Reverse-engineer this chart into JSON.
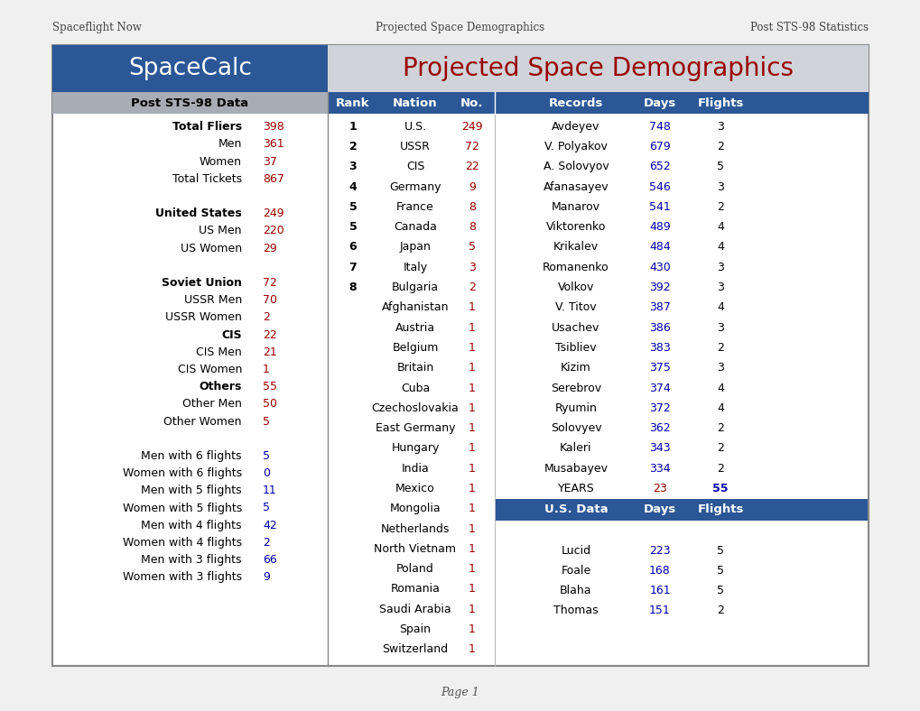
{
  "header_text": "Spaceflight Now",
  "center_header": "Projected Space Demographics",
  "right_header": "Post STS-98 Statistics",
  "spacecalc_title": "SpaceCalc",
  "main_title": "Projected Space Demographics",
  "subtitle": "Post STS-98 Data",
  "page_label": "Page 1",
  "left_col_rows": [
    {
      "label": "Total Fliers",
      "value": "398",
      "bold": true,
      "vcolor": "red"
    },
    {
      "label": "Men",
      "value": "361",
      "bold": false,
      "vcolor": "red"
    },
    {
      "label": "Women",
      "value": "37",
      "bold": false,
      "vcolor": "red"
    },
    {
      "label": "Total Tickets",
      "value": "867",
      "bold": false,
      "vcolor": "red"
    },
    {
      "label": "",
      "value": "",
      "bold": false,
      "vcolor": "red"
    },
    {
      "label": "United States",
      "value": "249",
      "bold": true,
      "vcolor": "red"
    },
    {
      "label": "US Men",
      "value": "220",
      "bold": false,
      "vcolor": "red"
    },
    {
      "label": "US Women",
      "value": "29",
      "bold": false,
      "vcolor": "red"
    },
    {
      "label": "",
      "value": "",
      "bold": false,
      "vcolor": "red"
    },
    {
      "label": "Soviet Union",
      "value": "72",
      "bold": true,
      "vcolor": "red"
    },
    {
      "label": "USSR Men",
      "value": "70",
      "bold": false,
      "vcolor": "red"
    },
    {
      "label": "USSR Women",
      "value": "2",
      "bold": false,
      "vcolor": "red"
    },
    {
      "label": "CIS",
      "value": "22",
      "bold": true,
      "vcolor": "red"
    },
    {
      "label": "CIS Men",
      "value": "21",
      "bold": false,
      "vcolor": "red"
    },
    {
      "label": "CIS Women",
      "value": "1",
      "bold": false,
      "vcolor": "red"
    },
    {
      "label": "Others",
      "value": "55",
      "bold": true,
      "vcolor": "red"
    },
    {
      "label": "Other Men",
      "value": "50",
      "bold": false,
      "vcolor": "red"
    },
    {
      "label": "Other Women",
      "value": "5",
      "bold": false,
      "vcolor": "red"
    },
    {
      "label": "",
      "value": "",
      "bold": false,
      "vcolor": "red"
    },
    {
      "label": "Men with 6 flights",
      "value": "5",
      "bold": false,
      "vcolor": "blue"
    },
    {
      "label": "Women with 6 flights",
      "value": "0",
      "bold": false,
      "vcolor": "blue"
    },
    {
      "label": "Men with 5 flights",
      "value": "11",
      "bold": false,
      "vcolor": "blue"
    },
    {
      "label": "Women with 5 flights",
      "value": "5",
      "bold": false,
      "vcolor": "blue"
    },
    {
      "label": "Men with 4 flights",
      "value": "42",
      "bold": false,
      "vcolor": "blue"
    },
    {
      "label": "Women with 4 flights",
      "value": "2",
      "bold": false,
      "vcolor": "blue"
    },
    {
      "label": "Men with 3 flights",
      "value": "66",
      "bold": false,
      "vcolor": "blue"
    },
    {
      "label": "Women with 3 flights",
      "value": "9",
      "bold": false,
      "vcolor": "blue"
    }
  ],
  "nation_rows": [
    {
      "rank": "1",
      "nation": "U.S.",
      "no": "249",
      "no_color": "red"
    },
    {
      "rank": "2",
      "nation": "USSR",
      "no": "72",
      "no_color": "red"
    },
    {
      "rank": "3",
      "nation": "CIS",
      "no": "22",
      "no_color": "red"
    },
    {
      "rank": "4",
      "nation": "Germany",
      "no": "9",
      "no_color": "red"
    },
    {
      "rank": "5",
      "nation": "France",
      "no": "8",
      "no_color": "red"
    },
    {
      "rank": "5",
      "nation": "Canada",
      "no": "8",
      "no_color": "red"
    },
    {
      "rank": "6",
      "nation": "Japan",
      "no": "5",
      "no_color": "red"
    },
    {
      "rank": "7",
      "nation": "Italy",
      "no": "3",
      "no_color": "red"
    },
    {
      "rank": "8",
      "nation": "Bulgaria",
      "no": "2",
      "no_color": "red"
    },
    {
      "rank": "",
      "nation": "Afghanistan",
      "no": "1",
      "no_color": "red"
    },
    {
      "rank": "",
      "nation": "Austria",
      "no": "1",
      "no_color": "red"
    },
    {
      "rank": "",
      "nation": "Belgium",
      "no": "1",
      "no_color": "red"
    },
    {
      "rank": "",
      "nation": "Britain",
      "no": "1",
      "no_color": "red"
    },
    {
      "rank": "",
      "nation": "Cuba",
      "no": "1",
      "no_color": "red"
    },
    {
      "rank": "",
      "nation": "Czechoslovakia",
      "no": "1",
      "no_color": "red"
    },
    {
      "rank": "",
      "nation": "East Germany",
      "no": "1",
      "no_color": "red"
    },
    {
      "rank": "",
      "nation": "Hungary",
      "no": "1",
      "no_color": "red"
    },
    {
      "rank": "",
      "nation": "India",
      "no": "1",
      "no_color": "red"
    },
    {
      "rank": "",
      "nation": "Mexico",
      "no": "1",
      "no_color": "red"
    },
    {
      "rank": "",
      "nation": "Mongolia",
      "no": "1",
      "no_color": "red"
    },
    {
      "rank": "",
      "nation": "Netherlands",
      "no": "1",
      "no_color": "red"
    },
    {
      "rank": "",
      "nation": "North Vietnam",
      "no": "1",
      "no_color": "red"
    },
    {
      "rank": "",
      "nation": "Poland",
      "no": "1",
      "no_color": "red"
    },
    {
      "rank": "",
      "nation": "Romania",
      "no": "1",
      "no_color": "red"
    },
    {
      "rank": "",
      "nation": "Saudi Arabia",
      "no": "1",
      "no_color": "red"
    },
    {
      "rank": "",
      "nation": "Spain",
      "no": "1",
      "no_color": "red"
    },
    {
      "rank": "",
      "nation": "Switzerland",
      "no": "1",
      "no_color": "red"
    }
  ],
  "records_rows": [
    {
      "name": "Avdeyev",
      "days": "748",
      "flights": "3"
    },
    {
      "name": "V. Polyakov",
      "days": "679",
      "flights": "2"
    },
    {
      "name": "A. Solovyov",
      "days": "652",
      "flights": "5"
    },
    {
      "name": "Afanasayev",
      "days": "546",
      "flights": "3"
    },
    {
      "name": "Manarov",
      "days": "541",
      "flights": "2"
    },
    {
      "name": "Viktorenko",
      "days": "489",
      "flights": "4"
    },
    {
      "name": "Krikalev",
      "days": "484",
      "flights": "4"
    },
    {
      "name": "Romanenko",
      "days": "430",
      "flights": "3"
    },
    {
      "name": "Volkov",
      "days": "392",
      "flights": "3"
    },
    {
      "name": "V. Titov",
      "days": "387",
      "flights": "4"
    },
    {
      "name": "Usachev",
      "days": "386",
      "flights": "3"
    },
    {
      "name": "Tsibliev",
      "days": "383",
      "flights": "2"
    },
    {
      "name": "Kizim",
      "days": "375",
      "flights": "3"
    },
    {
      "name": "Serebrov",
      "days": "374",
      "flights": "4"
    },
    {
      "name": "Ryumin",
      "days": "372",
      "flights": "4"
    },
    {
      "name": "Solovyev",
      "days": "362",
      "flights": "2"
    },
    {
      "name": "Kaleri",
      "days": "343",
      "flights": "2"
    },
    {
      "name": "Musabayev",
      "days": "334",
      "flights": "2"
    },
    {
      "name": "YEARS",
      "days": "23",
      "flights": "55"
    }
  ],
  "us_rows": [
    {
      "name": "Lucid",
      "days": "223",
      "flights": "5"
    },
    {
      "name": "Foale",
      "days": "168",
      "flights": "5"
    },
    {
      "name": "Blaha",
      "days": "161",
      "flights": "5"
    },
    {
      "name": "Thomas",
      "days": "151",
      "flights": "2"
    }
  ],
  "colors": {
    "dark_blue": "#2B5797",
    "light_gray_header": "#B0B5BC",
    "subheader_gray": "#A8ADB5",
    "white": "#FFFFFF",
    "dark_red": "#990000",
    "blue_value": "#0000AA",
    "black": "#000000",
    "outer_bg": "#F0F0F0",
    "border": "#888888",
    "right_panel_bg": "#D0D4DA"
  }
}
